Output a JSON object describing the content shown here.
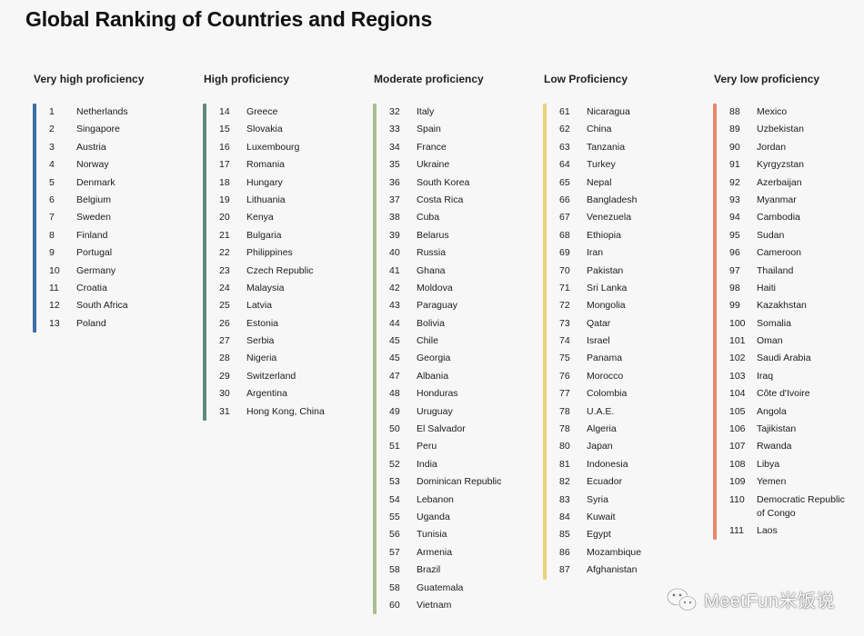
{
  "title": "Global Ranking of Countries and Regions",
  "columns": [
    {
      "heading": "Very high proficiency",
      "color": "#3d6ea8",
      "rows": [
        {
          "rank": "1",
          "name": "Netherlands"
        },
        {
          "rank": "2",
          "name": "Singapore"
        },
        {
          "rank": "3",
          "name": "Austria"
        },
        {
          "rank": "4",
          "name": "Norway"
        },
        {
          "rank": "5",
          "name": "Denmark"
        },
        {
          "rank": "6",
          "name": "Belgium"
        },
        {
          "rank": "7",
          "name": "Sweden"
        },
        {
          "rank": "8",
          "name": "Finland"
        },
        {
          "rank": "9",
          "name": "Portugal"
        },
        {
          "rank": "10",
          "name": "Germany"
        },
        {
          "rank": "11",
          "name": "Croatia"
        },
        {
          "rank": "12",
          "name": "South Africa"
        },
        {
          "rank": "13",
          "name": "Poland"
        }
      ]
    },
    {
      "heading": "High proficiency",
      "color": "#5e8a7d",
      "rows": [
        {
          "rank": "14",
          "name": "Greece"
        },
        {
          "rank": "15",
          "name": "Slovakia"
        },
        {
          "rank": "16",
          "name": "Luxembourg"
        },
        {
          "rank": "17",
          "name": "Romania"
        },
        {
          "rank": "18",
          "name": "Hungary"
        },
        {
          "rank": "19",
          "name": "Lithuania"
        },
        {
          "rank": "20",
          "name": "Kenya"
        },
        {
          "rank": "21",
          "name": "Bulgaria"
        },
        {
          "rank": "22",
          "name": "Philippines"
        },
        {
          "rank": "23",
          "name": "Czech Republic"
        },
        {
          "rank": "24",
          "name": "Malaysia"
        },
        {
          "rank": "25",
          "name": "Latvia"
        },
        {
          "rank": "26",
          "name": "Estonia"
        },
        {
          "rank": "27",
          "name": "Serbia"
        },
        {
          "rank": "28",
          "name": "Nigeria"
        },
        {
          "rank": "29",
          "name": "Switzerland"
        },
        {
          "rank": "30",
          "name": "Argentina"
        },
        {
          "rank": "31",
          "name": "Hong Kong, China"
        }
      ]
    },
    {
      "heading": "Moderate proficiency",
      "color": "#a9bf91",
      "rows": [
        {
          "rank": "32",
          "name": "Italy"
        },
        {
          "rank": "33",
          "name": "Spain"
        },
        {
          "rank": "34",
          "name": "France"
        },
        {
          "rank": "35",
          "name": "Ukraine"
        },
        {
          "rank": "36",
          "name": "South Korea"
        },
        {
          "rank": "37",
          "name": "Costa Rica"
        },
        {
          "rank": "38",
          "name": "Cuba"
        },
        {
          "rank": "39",
          "name": "Belarus"
        },
        {
          "rank": "40",
          "name": "Russia"
        },
        {
          "rank": "41",
          "name": "Ghana"
        },
        {
          "rank": "42",
          "name": "Moldova"
        },
        {
          "rank": "43",
          "name": "Paraguay"
        },
        {
          "rank": "44",
          "name": "Bolivia"
        },
        {
          "rank": "45",
          "name": "Chile"
        },
        {
          "rank": "45",
          "name": "Georgia"
        },
        {
          "rank": "47",
          "name": "Albania"
        },
        {
          "rank": "48",
          "name": "Honduras"
        },
        {
          "rank": "49",
          "name": "Uruguay"
        },
        {
          "rank": "50",
          "name": "El Salvador"
        },
        {
          "rank": "51",
          "name": "Peru"
        },
        {
          "rank": "52",
          "name": "India"
        },
        {
          "rank": "53",
          "name": "Dominican Republic"
        },
        {
          "rank": "54",
          "name": "Lebanon"
        },
        {
          "rank": "55",
          "name": "Uganda"
        },
        {
          "rank": "56",
          "name": "Tunisia"
        },
        {
          "rank": "57",
          "name": "Armenia"
        },
        {
          "rank": "58",
          "name": "Brazil"
        },
        {
          "rank": "58",
          "name": "Guatemala"
        },
        {
          "rank": "60",
          "name": "Vietnam"
        }
      ]
    },
    {
      "heading": "Low Proficiency",
      "color": "#e9d27a",
      "rows": [
        {
          "rank": "61",
          "name": "Nicaragua"
        },
        {
          "rank": "62",
          "name": "China"
        },
        {
          "rank": "63",
          "name": "Tanzania"
        },
        {
          "rank": "64",
          "name": "Turkey"
        },
        {
          "rank": "65",
          "name": "Nepal"
        },
        {
          "rank": "66",
          "name": "Bangladesh"
        },
        {
          "rank": "67",
          "name": "Venezuela"
        },
        {
          "rank": "68",
          "name": "Ethiopia"
        },
        {
          "rank": "69",
          "name": "Iran"
        },
        {
          "rank": "70",
          "name": "Pakistan"
        },
        {
          "rank": "71",
          "name": "Sri Lanka"
        },
        {
          "rank": "72",
          "name": "Mongolia"
        },
        {
          "rank": "73",
          "name": "Qatar"
        },
        {
          "rank": "74",
          "name": "Israel"
        },
        {
          "rank": "75",
          "name": "Panama"
        },
        {
          "rank": "76",
          "name": "Morocco"
        },
        {
          "rank": "77",
          "name": "Colombia"
        },
        {
          "rank": "78",
          "name": "U.A.E."
        },
        {
          "rank": "78",
          "name": "Algeria"
        },
        {
          "rank": "80",
          "name": "Japan"
        },
        {
          "rank": "81",
          "name": "Indonesia"
        },
        {
          "rank": "82",
          "name": "Ecuador"
        },
        {
          "rank": "83",
          "name": "Syria"
        },
        {
          "rank": "84",
          "name": "Kuwait"
        },
        {
          "rank": "85",
          "name": "Egypt"
        },
        {
          "rank": "86",
          "name": "Mozambique"
        },
        {
          "rank": "87",
          "name": "Afghanistan"
        }
      ]
    },
    {
      "heading": "Very low proficiency",
      "color": "#e8876a",
      "rows": [
        {
          "rank": "88",
          "name": "Mexico"
        },
        {
          "rank": "89",
          "name": "Uzbekistan"
        },
        {
          "rank": "90",
          "name": "Jordan"
        },
        {
          "rank": "91",
          "name": "Kyrgyzstan"
        },
        {
          "rank": "92",
          "name": "Azerbaijan"
        },
        {
          "rank": "93",
          "name": "Myanmar"
        },
        {
          "rank": "94",
          "name": "Cambodia"
        },
        {
          "rank": "95",
          "name": "Sudan"
        },
        {
          "rank": "96",
          "name": "Cameroon"
        },
        {
          "rank": "97",
          "name": "Thailand"
        },
        {
          "rank": "98",
          "name": "Haiti"
        },
        {
          "rank": "99",
          "name": "Kazakhstan"
        },
        {
          "rank": "100",
          "name": "Somalia"
        },
        {
          "rank": "101",
          "name": "Oman"
        },
        {
          "rank": "102",
          "name": "Saudi Arabia"
        },
        {
          "rank": "103",
          "name": "Iraq"
        },
        {
          "rank": "104",
          "name": "Côte d'Ivoire"
        },
        {
          "rank": "105",
          "name": "Angola"
        },
        {
          "rank": "106",
          "name": "Tajikistan"
        },
        {
          "rank": "107",
          "name": "Rwanda"
        },
        {
          "rank": "108",
          "name": "Libya"
        },
        {
          "rank": "109",
          "name": "Yemen"
        },
        {
          "rank": "110",
          "name": "Democratic Republic of Congo"
        },
        {
          "rank": "111",
          "name": "Laos"
        }
      ]
    }
  ],
  "watermark": {
    "text": "MeetFun米饭说",
    "icon": "wechat-logo-icon"
  }
}
